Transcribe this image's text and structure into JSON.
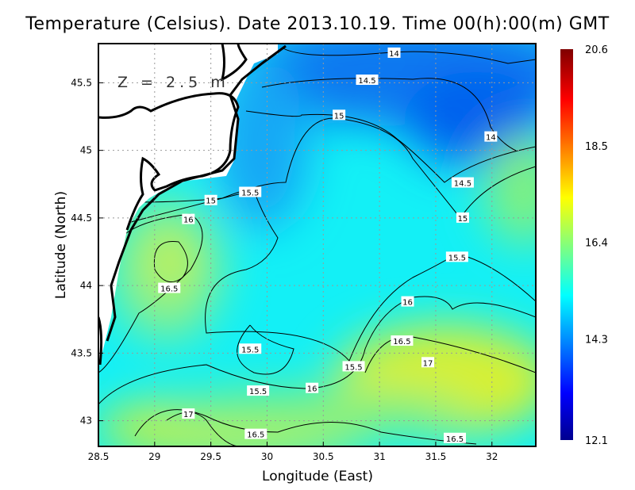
{
  "chart_data": {
    "type": "heatmap",
    "title": "Temperature (Celsius). Date 2013.10.19. Time 00(h):00(m) GMT",
    "annotation": "Z = 2.5 m",
    "xlabel": "Longitude (East)",
    "ylabel": "Latitude (North)",
    "xlim": [
      28.5,
      32.39
    ],
    "ylim": [
      42.81,
      45.79
    ],
    "xticks": [
      "28.5",
      "29",
      "29.5",
      "30",
      "30.5",
      "31",
      "31.5",
      "32"
    ],
    "xtick_values": [
      28.5,
      29,
      29.5,
      30,
      30.5,
      31,
      31.5,
      32
    ],
    "yticks": [
      "43",
      "43.5",
      "44",
      "44.5",
      "45",
      "45.5"
    ],
    "ytick_values": [
      43,
      43.5,
      44,
      44.5,
      45,
      45.5
    ],
    "grid": true,
    "colormap": "jet",
    "colorbar": {
      "min": 12.1,
      "max": 20.6,
      "ticks": [
        "12.1",
        "14.3",
        "16.4",
        "18.5",
        "20.6"
      ],
      "tick_values": [
        12.1,
        14.3,
        16.4,
        18.5,
        20.6
      ]
    },
    "contour_levels": [
      14,
      14.5,
      15,
      15.5,
      16,
      16.5,
      17
    ],
    "contour_labels": [
      {
        "text": "14",
        "lon": 31.13,
        "lat": 45.72
      },
      {
        "text": "14.5",
        "lon": 30.89,
        "lat": 45.52
      },
      {
        "text": "15",
        "lon": 30.64,
        "lat": 45.26
      },
      {
        "text": "14",
        "lon": 31.99,
        "lat": 45.1
      },
      {
        "text": "14.5",
        "lon": 31.74,
        "lat": 44.76
      },
      {
        "text": "15",
        "lon": 31.74,
        "lat": 44.5
      },
      {
        "text": "15",
        "lon": 29.5,
        "lat": 44.63
      },
      {
        "text": "15.5",
        "lon": 29.85,
        "lat": 44.69
      },
      {
        "text": "16",
        "lon": 29.3,
        "lat": 44.49
      },
      {
        "text": "15.5",
        "lon": 31.69,
        "lat": 44.21
      },
      {
        "text": "16.5",
        "lon": 29.13,
        "lat": 43.98
      },
      {
        "text": "16",
        "lon": 31.25,
        "lat": 43.88
      },
      {
        "text": "16.5",
        "lon": 31.2,
        "lat": 43.59
      },
      {
        "text": "15.5",
        "lon": 29.85,
        "lat": 43.53
      },
      {
        "text": "15.5",
        "lon": 30.77,
        "lat": 43.4
      },
      {
        "text": "17",
        "lon": 31.43,
        "lat": 43.43
      },
      {
        "text": "16",
        "lon": 30.4,
        "lat": 43.24
      },
      {
        "text": "15.5",
        "lon": 29.92,
        "lat": 43.22
      },
      {
        "text": "17",
        "lon": 29.3,
        "lat": 43.05
      },
      {
        "text": "16.5",
        "lon": 29.9,
        "lat": 42.9
      },
      {
        "text": "16.5",
        "lon": 31.67,
        "lat": 42.87
      }
    ]
  }
}
